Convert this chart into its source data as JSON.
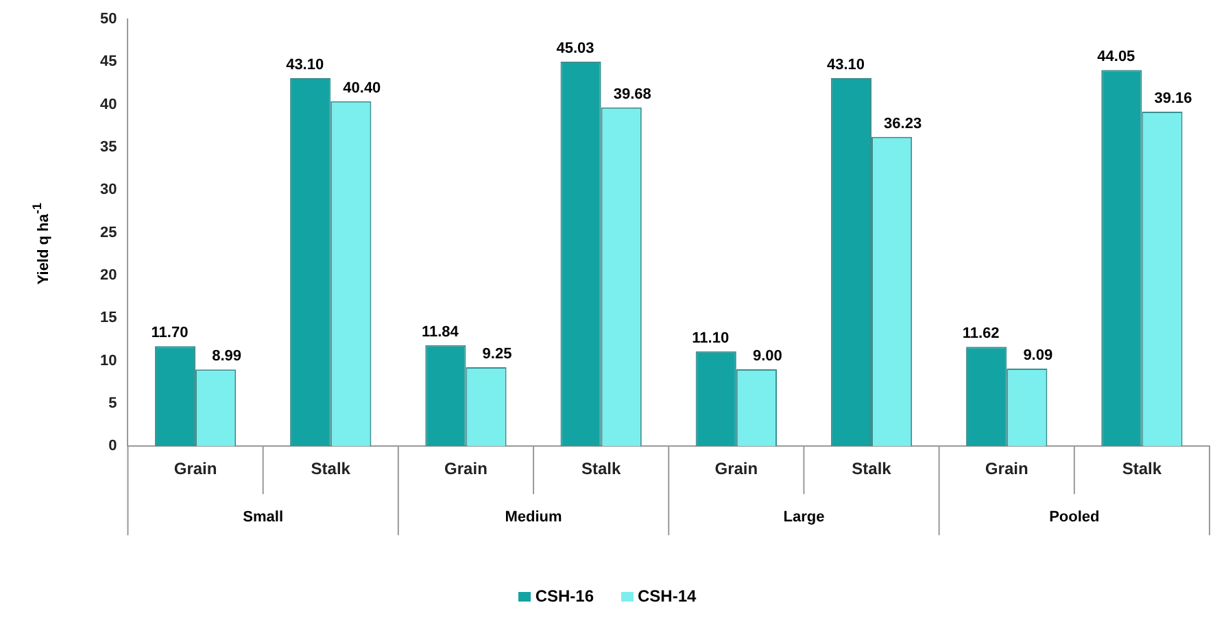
{
  "chart_data": {
    "type": "bar",
    "ylabel": "Yield q ha$^{-1}$",
    "categories": [
      "Grain",
      "Stalk",
      "Grain",
      "Stalk",
      "Grain",
      "Stalk",
      "Grain",
      "Stalk"
    ],
    "annotations": [
      "Small",
      "Medium",
      "Large",
      "Pooled"
    ],
    "series": [
      {
        "name": "CSH-16",
        "color": "#14a3a3",
        "values": [
          11.7,
          43.1,
          11.84,
          45.03,
          11.1,
          43.1,
          11.62,
          44.05
        ],
        "value_labels": [
          "11.70",
          "43.10",
          "11.84",
          "45.03",
          "11.10",
          "43.10",
          "11.62",
          "44.05"
        ]
      },
      {
        "name": "CSH-14",
        "color": "#7beeee",
        "values": [
          8.99,
          40.4,
          9.25,
          39.68,
          9.0,
          36.23,
          9.09,
          39.16
        ],
        "value_labels": [
          "8.99",
          "40.40",
          "9.25",
          "39.68",
          "9.00",
          "36.23",
          "9.09",
          "39.16"
        ]
      }
    ],
    "ylim": [
      0,
      50
    ],
    "yticks": [
      0,
      5,
      10,
      15,
      20,
      25,
      30,
      35,
      40,
      45,
      50
    ],
    "grid": false,
    "legend": "bottom"
  }
}
